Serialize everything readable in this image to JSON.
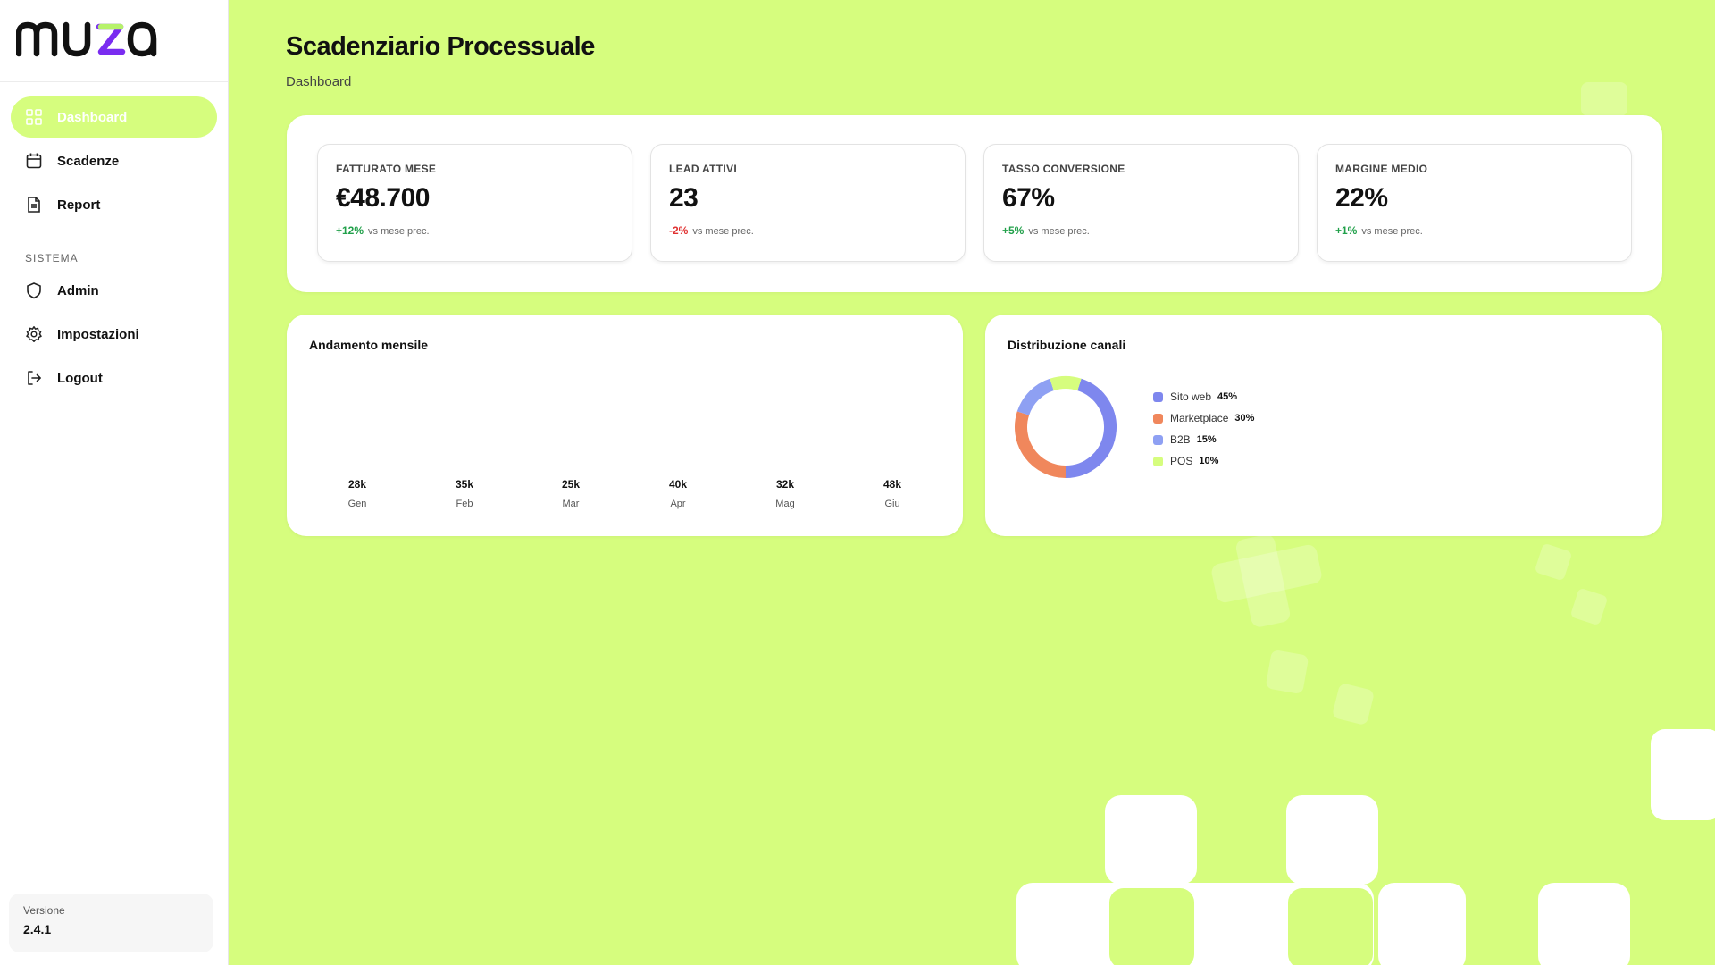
{
  "sidebar": {
    "logo": "muza",
    "nav": [
      {
        "label": "Dashboard",
        "icon": "grid-icon",
        "active": true
      },
      {
        "label": "Scadenze",
        "icon": "calendar-icon"
      },
      {
        "label": "Report",
        "icon": "document-icon"
      }
    ],
    "section_label": "SISTEMA",
    "system_nav": [
      {
        "label": "Admin",
        "icon": "shield-icon"
      },
      {
        "label": "Impostazioni",
        "icon": "gear-icon"
      },
      {
        "label": "Logout",
        "icon": "logout-icon"
      }
    ],
    "version_label": "Versione",
    "version_value": "2.4.1"
  },
  "header": {
    "title": "Scadenziario Processuale",
    "breadcrumb": "Dashboard"
  },
  "kpis": [
    {
      "label": "FATTURATO MESE",
      "value": "€48.700",
      "delta": "+12%",
      "delta_note": "vs mese prec.",
      "trend": "up"
    },
    {
      "label": "LEAD ATTIVI",
      "value": "23",
      "delta": "-2%",
      "delta_note": "vs mese prec.",
      "trend": "down"
    },
    {
      "label": "TASSO CONVERSIONE",
      "value": "67%",
      "delta": "+5%",
      "delta_note": "vs mese prec.",
      "trend": "up"
    },
    {
      "label": "MARGINE MEDIO",
      "value": "22%",
      "delta": "+1%",
      "delta_note": "vs mese prec.",
      "trend": "up"
    }
  ],
  "monthly_panel": {
    "title": "Andamento mensile",
    "bars": [
      {
        "value_label": "28k",
        "month": "Gen"
      },
      {
        "value_label": "35k",
        "month": "Feb"
      },
      {
        "value_label": "25k",
        "month": "Mar"
      },
      {
        "value_label": "40k",
        "month": "Apr"
      },
      {
        "value_label": "32k",
        "month": "Mag"
      },
      {
        "value_label": "48k",
        "month": "Giu"
      }
    ]
  },
  "channels_panel": {
    "title": "Distribuzione canali",
    "legend": [
      {
        "name": "Sito web",
        "pct": "45%",
        "value": 45,
        "color": "#7e87ee"
      },
      {
        "name": "Marketplace",
        "pct": "30%",
        "value": 30,
        "color": "#f0875c"
      },
      {
        "name": "B2B",
        "pct": "15%",
        "value": 15,
        "color": "#8ea0f3"
      },
      {
        "name": "POS",
        "pct": "10%",
        "value": 10,
        "color": "#d6fd7e"
      }
    ]
  },
  "chart_data": [
    {
      "type": "bar",
      "title": "Andamento mensile",
      "categories": [
        "Gen",
        "Feb",
        "Mar",
        "Apr",
        "Mag",
        "Giu"
      ],
      "values": [
        28,
        35,
        25,
        40,
        32,
        48
      ],
      "value_labels": [
        "28k",
        "35k",
        "25k",
        "40k",
        "32k",
        "48k"
      ]
    },
    {
      "type": "pie",
      "title": "Distribuzione canali",
      "categories": [
        "Sito web",
        "Marketplace",
        "B2B",
        "POS"
      ],
      "values": [
        45,
        30,
        15,
        10
      ],
      "colors": [
        "#7e87ee",
        "#f0875c",
        "#8ea0f3",
        "#d6fd7e"
      ],
      "donut": true,
      "legend": "right"
    }
  ],
  "colors": {
    "background": "#d6fd7e",
    "accent": "#d6fd7e",
    "positive": "#21a04a",
    "negative": "#e03131"
  }
}
